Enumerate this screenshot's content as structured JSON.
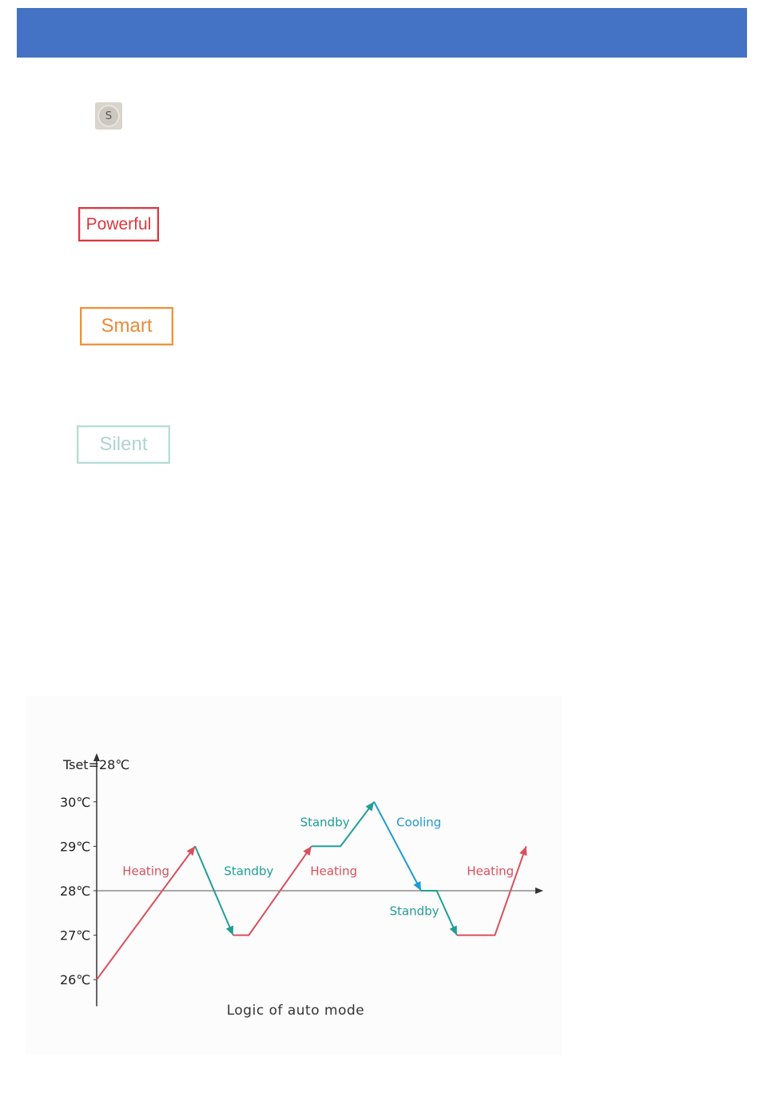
{
  "header": {
    "color": "#4472c4"
  },
  "s_button": {
    "label": "S"
  },
  "modes": {
    "powerful": "Powerful",
    "smart": "Smart",
    "silent": "Silent"
  },
  "chart": {
    "caption": "Logic of auto mode"
  },
  "chart_data": {
    "type": "line",
    "title": "Tset=28℃",
    "ylabel": "",
    "xlabel": "",
    "y_ticks": [
      "26℃",
      "27℃",
      "28℃",
      "29℃",
      "30℃"
    ],
    "ylim": [
      25.4,
      31
    ],
    "setpoint": 28,
    "colors": {
      "heating": "#d94f5c",
      "standby": "#1f9e96",
      "cooling": "#1e9ad6",
      "axis": "#333333"
    },
    "segments": [
      {
        "mode": "heating",
        "points": [
          [
            0,
            26
          ],
          [
            2.2,
            29
          ]
        ],
        "arrow": true
      },
      {
        "mode": "standby",
        "points": [
          [
            2.2,
            29
          ],
          [
            3.05,
            27
          ]
        ],
        "arrow": true
      },
      {
        "mode": "heating",
        "points": [
          [
            3.05,
            27
          ],
          [
            3.4,
            27
          ],
          [
            4.8,
            29
          ]
        ],
        "arrow": true
      },
      {
        "mode": "standby",
        "points": [
          [
            4.8,
            29
          ],
          [
            5.45,
            29
          ],
          [
            6.2,
            30
          ]
        ],
        "arrow": true
      },
      {
        "mode": "cooling",
        "points": [
          [
            6.2,
            30
          ],
          [
            7.25,
            28
          ]
        ],
        "arrow": true
      },
      {
        "mode": "standby",
        "points": [
          [
            7.25,
            28
          ],
          [
            7.6,
            28
          ],
          [
            8.05,
            27
          ]
        ],
        "arrow": true
      },
      {
        "mode": "heating",
        "points": [
          [
            8.05,
            27
          ],
          [
            8.9,
            27
          ],
          [
            9.6,
            29
          ]
        ],
        "arrow": true
      }
    ],
    "annotations": [
      {
        "text": "Heating",
        "mode": "heating",
        "x": 1.1,
        "y": 28.35
      },
      {
        "text": "Standby",
        "mode": "standby",
        "x": 3.4,
        "y": 28.35
      },
      {
        "text": "Heating",
        "mode": "heating",
        "x": 5.3,
        "y": 28.35
      },
      {
        "text": "Standby",
        "mode": "standby",
        "x": 5.1,
        "y": 29.45
      },
      {
        "text": "Cooling",
        "mode": "cooling",
        "x": 7.2,
        "y": 29.45
      },
      {
        "text": "Standby",
        "mode": "standby",
        "x": 7.1,
        "y": 27.45
      },
      {
        "text": "Heating",
        "mode": "heating",
        "x": 8.8,
        "y": 28.35
      }
    ]
  }
}
